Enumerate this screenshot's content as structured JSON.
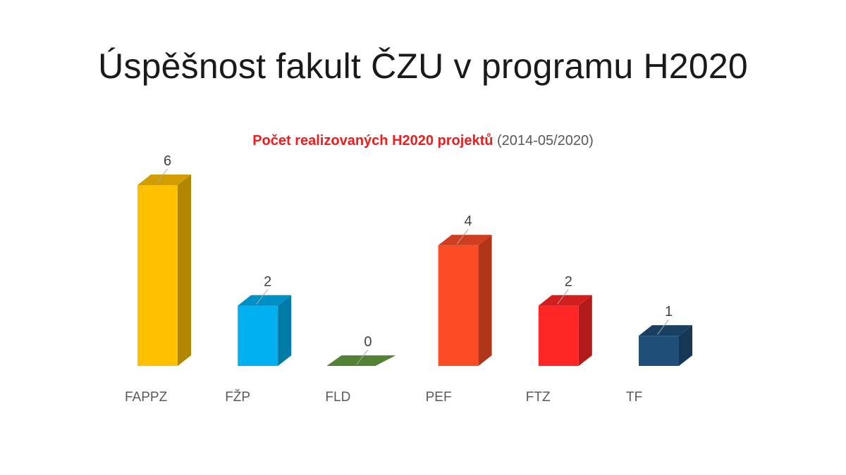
{
  "slide": {
    "title": "Úspěšnost fakult ČZU v programu H2020"
  },
  "chart_data": {
    "type": "bar",
    "title": "Počet realizovaných H2020 projektů",
    "subtitle": "(2014-05/2020)",
    "categories": [
      "FAPPZ",
      "FŽP",
      "FLD",
      "PEF",
      "FTZ",
      "TF"
    ],
    "values": [
      6,
      2,
      0,
      4,
      2,
      1
    ],
    "colors": [
      "#ffc000",
      "#00b0f0",
      "#548235",
      "#fc4c24",
      "#ff2626",
      "#1f4e79"
    ],
    "ylim": [
      0,
      6
    ],
    "xlabel": "",
    "ylabel": "",
    "grid": false,
    "legend": "none",
    "style": "3d-columns"
  }
}
